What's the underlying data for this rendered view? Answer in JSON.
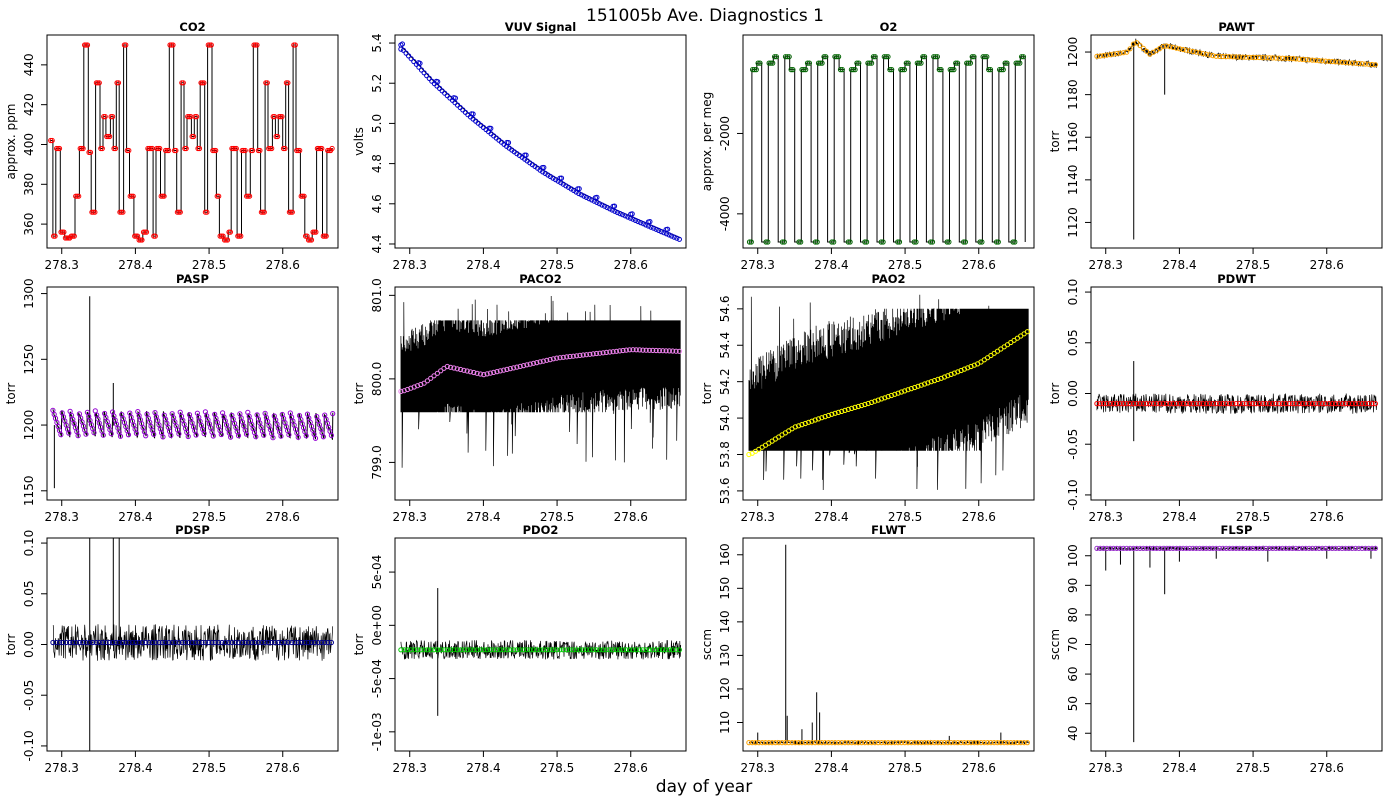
{
  "title": "151005b   Ave. Diagnostics 1",
  "xlabel": "day of year",
  "chart_data": [
    {
      "type": "line",
      "title": "CO2",
      "ylabel": "approx. ppm",
      "xlim": [
        278.28,
        278.675
      ],
      "ylim": [
        348,
        455
      ],
      "xticks": [
        "278.3",
        "278.4",
        "278.5",
        "278.6"
      ],
      "yticks": [
        360,
        380,
        400,
        420,
        440
      ],
      "line_color": "#000000",
      "marker_color": "#ff0000",
      "pattern": "steps",
      "levels": [
        [
          278.284,
          402
        ],
        [
          278.288,
          354
        ],
        [
          278.292,
          398
        ],
        [
          278.298,
          356
        ],
        [
          278.304,
          353
        ],
        [
          278.312,
          354
        ],
        [
          278.318,
          374
        ],
        [
          278.324,
          398
        ],
        [
          278.33,
          450
        ],
        [
          278.336,
          396
        ],
        [
          278.34,
          366
        ],
        [
          278.346,
          431
        ],
        [
          278.352,
          398
        ],
        [
          278.356,
          414
        ],
        [
          278.36,
          404
        ],
        [
          278.366,
          414
        ],
        [
          278.37,
          398
        ],
        [
          278.374,
          431
        ],
        [
          278.378,
          366
        ],
        [
          278.384,
          450
        ],
        [
          278.388,
          397
        ],
        [
          278.392,
          374
        ],
        [
          278.398,
          354
        ],
        [
          278.404,
          352
        ],
        [
          278.41,
          356
        ],
        [
          278.416,
          398
        ],
        [
          278.424,
          354
        ],
        [
          278.428,
          398
        ],
        [
          278.434,
          374
        ],
        [
          278.44,
          397
        ],
        [
          278.446,
          450
        ],
        [
          278.452,
          397
        ],
        [
          278.456,
          366
        ],
        [
          278.462,
          431
        ],
        [
          278.466,
          398
        ],
        [
          278.47,
          414
        ],
        [
          278.476,
          404
        ],
        [
          278.48,
          414
        ],
        [
          278.484,
          398
        ],
        [
          278.488,
          431
        ],
        [
          278.494,
          366
        ],
        [
          278.498,
          450
        ],
        [
          278.504,
          397
        ],
        [
          278.51,
          374
        ],
        [
          278.514,
          354
        ],
        [
          278.52,
          352
        ],
        [
          278.526,
          356
        ],
        [
          278.53,
          398
        ],
        [
          278.538,
          354
        ],
        [
          278.544,
          397
        ],
        [
          278.55,
          374
        ],
        [
          278.556,
          397
        ],
        [
          278.56,
          450
        ],
        [
          278.566,
          397
        ],
        [
          278.57,
          366
        ],
        [
          278.576,
          431
        ],
        [
          278.58,
          398
        ],
        [
          278.586,
          414
        ],
        [
          278.59,
          404
        ],
        [
          278.594,
          414
        ],
        [
          278.6,
          398
        ],
        [
          278.604,
          431
        ],
        [
          278.608,
          366
        ],
        [
          278.614,
          450
        ],
        [
          278.618,
          397
        ],
        [
          278.624,
          374
        ],
        [
          278.63,
          354
        ],
        [
          278.634,
          352
        ],
        [
          278.64,
          356
        ],
        [
          278.646,
          398
        ],
        [
          278.654,
          354
        ],
        [
          278.66,
          397
        ],
        [
          278.666,
          398
        ]
      ]
    },
    {
      "type": "scatter",
      "title": "VUV Signal",
      "ylabel": "volts",
      "xlim": [
        278.28,
        278.675
      ],
      "ylim": [
        4.38,
        5.44
      ],
      "xticks": [
        "278.3",
        "278.4",
        "278.5",
        "278.6"
      ],
      "yticks": [
        "4.4",
        "4.6",
        "4.8",
        "5.0",
        "5.2",
        "5.4"
      ],
      "line_color": "#000000",
      "marker_color": "#0000cc",
      "pattern": "curve",
      "points": [
        [
          278.29,
          5.38
        ],
        [
          278.33,
          5.22
        ],
        [
          278.38,
          5.05
        ],
        [
          278.43,
          4.9
        ],
        [
          278.48,
          4.77
        ],
        [
          278.53,
          4.66
        ],
        [
          278.58,
          4.57
        ],
        [
          278.63,
          4.49
        ],
        [
          278.668,
          4.43
        ]
      ]
    },
    {
      "type": "line",
      "title": "O2",
      "ylabel": "approx. per meg",
      "xlim": [
        278.28,
        278.675
      ],
      "ylim": [
        -4850,
        450
      ],
      "xticks": [
        "278.3",
        "278.4",
        "278.5",
        "278.6"
      ],
      "yticks": [
        "-4000",
        "-2000"
      ],
      "line_color": "#000000",
      "marker_color": "#006400",
      "pattern": "square",
      "cycles": 17,
      "high": -250,
      "low": -4700
    },
    {
      "type": "line",
      "title": "PAWT",
      "ylabel": "torr",
      "xlim": [
        278.28,
        278.675
      ],
      "ylim": [
        1108,
        1208
      ],
      "xticks": [
        "278.3",
        "278.4",
        "278.5",
        "278.6"
      ],
      "yticks": [
        1120,
        1140,
        1160,
        1180,
        1200
      ],
      "line_color": "#000000",
      "marker_color": "#ffa500",
      "pattern": "noise",
      "center": [
        [
          278.29,
          1198
        ],
        [
          278.33,
          1200
        ],
        [
          278.34,
          1205
        ],
        [
          278.36,
          1199
        ],
        [
          278.38,
          1203
        ],
        [
          278.45,
          1198
        ],
        [
          278.55,
          1197
        ],
        [
          278.668,
          1194
        ]
      ],
      "noise": 1.5,
      "spikes": [
        [
          278.338,
          1112
        ],
        [
          278.38,
          1180
        ]
      ]
    },
    {
      "type": "line",
      "title": "PASP",
      "ylabel": "torr",
      "xlim": [
        278.28,
        278.675
      ],
      "ylim": [
        1143,
        1305
      ],
      "xticks": [
        "278.3",
        "278.4",
        "278.5",
        "278.6"
      ],
      "yticks": [
        1150,
        1200,
        1250,
        1300
      ],
      "line_color": "#000000",
      "marker_color": "#9400d3",
      "pattern": "sawtooth",
      "center": [
        [
          278.29,
          1200
        ],
        [
          278.668,
          1198
        ]
      ],
      "amp": 14,
      "period": 0.0115,
      "spikes": [
        [
          278.29,
          1152
        ],
        [
          278.338,
          1298
        ],
        [
          278.37,
          1232
        ]
      ]
    },
    {
      "type": "scatter",
      "title": "PACO2",
      "ylabel": "torr",
      "xlim": [
        278.28,
        278.675
      ],
      "ylim": [
        798.55,
        801.1
      ],
      "xticks": [
        "278.3",
        "278.4",
        "278.5",
        "278.6"
      ],
      "yticks": [
        "799.0",
        "800.0",
        "801.0"
      ],
      "line_color": "#000000",
      "marker_color": "#ee82ee",
      "pattern": "band",
      "center": [
        [
          278.29,
          799.85
        ],
        [
          278.32,
          799.95
        ],
        [
          278.35,
          800.15
        ],
        [
          278.4,
          800.05
        ],
        [
          278.45,
          800.15
        ],
        [
          278.5,
          800.25
        ],
        [
          278.55,
          800.3
        ],
        [
          278.6,
          800.35
        ],
        [
          278.668,
          800.33
        ]
      ],
      "band": [
        799.6,
        800.7
      ],
      "outer": [
        798.9,
        801.0
      ]
    },
    {
      "type": "scatter",
      "title": "PAO2",
      "ylabel": "torr",
      "xlim": [
        278.28,
        278.675
      ],
      "ylim": [
        53.55,
        54.72
      ],
      "xticks": [
        "278.3",
        "278.4",
        "278.5",
        "278.6"
      ],
      "yticks": [
        "53.6",
        "53.8",
        "54.0",
        "54.2",
        "54.4",
        "54.6"
      ],
      "line_color": "#000000",
      "marker_color": "#ffff00",
      "pattern": "band",
      "center": [
        [
          278.29,
          53.8
        ],
        [
          278.35,
          53.95
        ],
        [
          278.4,
          54.02
        ],
        [
          278.45,
          54.08
        ],
        [
          278.5,
          54.15
        ],
        [
          278.55,
          54.22
        ],
        [
          278.6,
          54.3
        ],
        [
          278.668,
          54.48
        ]
      ],
      "band": [
        53.82,
        54.6
      ],
      "outer": [
        53.6,
        54.68
      ]
    },
    {
      "type": "scatter",
      "title": "PDWT",
      "ylabel": "torr",
      "xlim": [
        278.28,
        278.675
      ],
      "ylim": [
        -0.105,
        0.105
      ],
      "xticks": [
        "278.3",
        "278.4",
        "278.5",
        "278.6"
      ],
      "yticks": [
        "-0.10",
        "-0.05",
        "0.00",
        "0.05",
        "0.10"
      ],
      "line_color": "#000000",
      "marker_color": "#ff0000",
      "pattern": "noise",
      "center": [
        [
          278.29,
          -0.01
        ],
        [
          278.668,
          -0.01
        ]
      ],
      "noise": 0.01,
      "spikes": [
        [
          278.338,
          0.032
        ],
        [
          278.338,
          -0.047
        ]
      ]
    },
    {
      "type": "scatter",
      "title": "PDSP",
      "ylabel": "torr",
      "xlim": [
        278.28,
        278.675
      ],
      "ylim": [
        -0.105,
        0.105
      ],
      "xticks": [
        "278.3",
        "278.4",
        "278.5",
        "278.6"
      ],
      "yticks": [
        "-0.10",
        "-0.05",
        "0.00",
        "0.05",
        "0.10"
      ],
      "line_color": "#000000",
      "marker_color": "#00008b",
      "pattern": "noise",
      "center": [
        [
          278.29,
          0.002
        ],
        [
          278.668,
          0.002
        ]
      ],
      "noise": 0.018,
      "spikes": [
        [
          278.338,
          0.11
        ],
        [
          278.338,
          -0.11
        ],
        [
          278.37,
          0.11
        ],
        [
          278.378,
          0.11
        ]
      ]
    },
    {
      "type": "scatter",
      "title": "PDO2",
      "ylabel": "torr",
      "xlim": [
        278.28,
        278.675
      ],
      "ylim": [
        -0.00118,
        0.00082
      ],
      "xticks": [
        "278.3",
        "278.4",
        "278.5",
        "278.6"
      ],
      "yticks": [
        "-1e-03",
        "-5e-04",
        "0e+00",
        "5e-04"
      ],
      "line_color": "#000000",
      "marker_color": "#00cc00",
      "pattern": "noise",
      "center": [
        [
          278.29,
          -0.00023
        ],
        [
          278.668,
          -0.00023
        ]
      ],
      "noise": 9e-05,
      "spikes": [
        [
          278.338,
          0.00035
        ],
        [
          278.338,
          -0.00085
        ]
      ]
    },
    {
      "type": "scatter",
      "title": "FLWT",
      "ylabel": "sccm",
      "xlim": [
        278.28,
        278.675
      ],
      "ylim": [
        101.5,
        165
      ],
      "xticks": [
        "278.3",
        "278.4",
        "278.5",
        "278.6"
      ],
      "yticks": [
        110,
        120,
        130,
        140,
        150,
        160
      ],
      "line_color": "#000000",
      "marker_color": "#ffa500",
      "pattern": "flat",
      "center": [
        [
          278.29,
          104
        ],
        [
          278.668,
          104
        ]
      ],
      "noise": 0.3,
      "spikes": [
        [
          278.338,
          163
        ],
        [
          278.34,
          112
        ],
        [
          278.36,
          108
        ],
        [
          278.374,
          110
        ],
        [
          278.38,
          119
        ],
        [
          278.384,
          113
        ],
        [
          278.3,
          107
        ],
        [
          278.56,
          106
        ],
        [
          278.63,
          107
        ]
      ]
    },
    {
      "type": "scatter",
      "title": "FLSP",
      "ylabel": "sccm",
      "xlim": [
        278.28,
        278.675
      ],
      "ylim": [
        34,
        106
      ],
      "xticks": [
        "278.3",
        "278.4",
        "278.5",
        "278.6"
      ],
      "yticks": [
        40,
        50,
        60,
        70,
        80,
        90,
        100
      ],
      "line_color": "#000000",
      "marker_color": "#9932cc",
      "pattern": "flat",
      "center": [
        [
          278.29,
          102.5
        ],
        [
          278.668,
          102.5
        ]
      ],
      "noise": 0.4,
      "spikes": [
        [
          278.338,
          37
        ],
        [
          278.38,
          87
        ],
        [
          278.3,
          95
        ],
        [
          278.32,
          97
        ],
        [
          278.36,
          96
        ],
        [
          278.4,
          98
        ],
        [
          278.45,
          99
        ],
        [
          278.52,
          98
        ],
        [
          278.6,
          99
        ],
        [
          278.66,
          99
        ]
      ]
    }
  ]
}
